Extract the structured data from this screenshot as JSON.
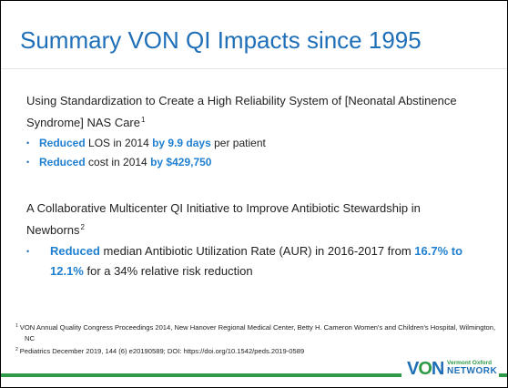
{
  "title": "Summary VON QI Impacts since 1995",
  "studies": [
    {
      "title": "Using Standardization to Create a High Reliability System of [Neonatal Abstinence Syndrome] NAS Care",
      "ref": "1",
      "bullets": [
        [
          "Reduced",
          " LOS in 2014 ",
          "by 9.9 days",
          " per patient"
        ],
        [
          "Reduced",
          " cost in 2014 ",
          "by $429,750"
        ]
      ]
    },
    {
      "title": "A Collaborative Multicenter QI Initiative to Improve Antibiotic Stewardship in Newborns",
      "ref": "2",
      "bullets": [
        [
          "Reduced",
          " median Antibiotic Utilization Rate (AUR) in 2016-2017 from ",
          "16.7% to 12.1%",
          " for a 34% relative risk reduction"
        ]
      ]
    }
  ],
  "footnotes": [
    {
      "ref": "1",
      "text": "VON Annual Quality Congress Proceedings 2014, New Hanover Regional Medical Center, Betty H. Cameron Women's and Children's Hospital, Wilmington, NC"
    },
    {
      "ref": "2",
      "text": "Pediatrics December 2019,  144 (6) e20190589; DOI: https://doi.org/10.1542/peds.2019-0589"
    }
  ],
  "logo": {
    "mark": [
      "V",
      "O",
      "N"
    ],
    "line1": "Vermont Oxford",
    "line2": "NETWORK"
  }
}
